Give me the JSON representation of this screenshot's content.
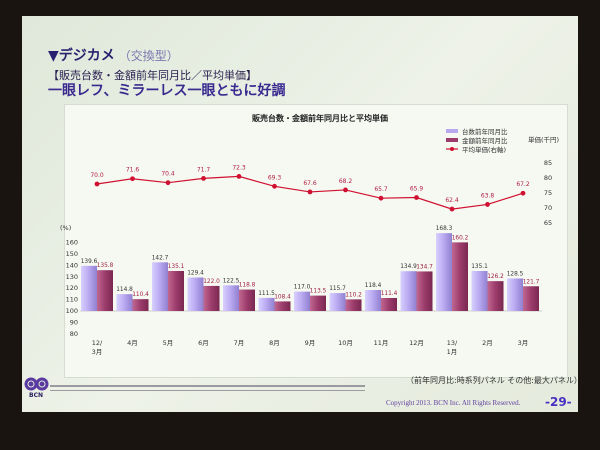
{
  "slide": {
    "heading": "▼デジカメ",
    "heading_sub": "（交換型）",
    "subheading": "【販売台数・金額前年同月比／平均単価】",
    "headline": "一眼レフ、ミラーレス一眼ともに好調",
    "footnote": "（前年同月比:時系列パネル その他:最大パネル）",
    "copyright": "Copyright 2013. BCN Inc. All Rights Reserved.",
    "page_number": "-29-",
    "logo_text": "BCN"
  },
  "chart_data": {
    "type": "bar",
    "title": "販売台数・金額前年同月比と平均単価",
    "categories": [
      [
        "12/",
        "3月"
      ],
      [
        "4月"
      ],
      [
        "5月"
      ],
      [
        "6月"
      ],
      [
        "7月"
      ],
      [
        "8月"
      ],
      [
        "9月"
      ],
      [
        "10月"
      ],
      [
        "11月"
      ],
      [
        "12月"
      ],
      [
        "13/",
        "1月"
      ],
      [
        "2月"
      ],
      [
        "3月"
      ]
    ],
    "left_axis": {
      "label": "(%)",
      "ticks": [
        "160",
        "150",
        "140",
        "130",
        "120",
        "110",
        "100",
        "90",
        "80"
      ],
      "range": [
        80,
        160
      ],
      "baseline": 100
    },
    "right_axis": {
      "label": "単価(千円)",
      "ticks": [
        "85",
        "80",
        "75",
        "70",
        "65"
      ],
      "range": [
        65,
        85
      ]
    },
    "series": [
      {
        "name": "台数前年同月比",
        "type": "bar",
        "color": "#b8a8f0",
        "values": [
          139.6,
          114.8,
          142.7,
          129.4,
          122.5,
          111.5,
          117.0,
          115.7,
          118.4,
          134.9,
          168.3,
          135.1,
          128.5
        ]
      },
      {
        "name": "金額前年同月比",
        "type": "bar",
        "color": "#9c3c6c",
        "values": [
          135.8,
          110.4,
          135.1,
          122.0,
          118.8,
          108.4,
          113.5,
          110.2,
          111.4,
          134.7,
          160.2,
          126.2,
          121.7
        ]
      },
      {
        "name": "平均単価(右軸)",
        "type": "line",
        "color": "#d01030",
        "values": [
          70.0,
          71.6,
          70.4,
          71.7,
          72.3,
          69.3,
          67.6,
          68.2,
          65.7,
          65.9,
          62.4,
          63.8,
          67.2
        ]
      }
    ],
    "legend": "top-right"
  }
}
